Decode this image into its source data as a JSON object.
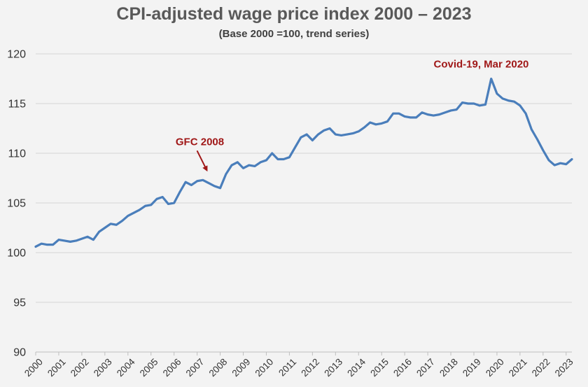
{
  "title": "CPI-adjusted wage price index 2000 – 2023",
  "subtitle": "(Base 2000 =100, trend series)",
  "chart_data": {
    "type": "line",
    "title": "CPI-adjusted wage price index 2000 – 2023",
    "subtitle": "(Base 2000 =100, trend series)",
    "xlabel": "",
    "ylabel": "",
    "xlim": [
      2000,
      2023.25
    ],
    "ylim": [
      90,
      120
    ],
    "yticks": [
      90,
      95,
      100,
      105,
      110,
      115,
      120
    ],
    "xticks": [
      "2000",
      "2001",
      "2002",
      "2003",
      "2004",
      "2005",
      "2006",
      "2007",
      "2008",
      "2009",
      "2010",
      "2011",
      "2012",
      "2013",
      "2014",
      "2015",
      "2016",
      "2017",
      "2018",
      "2019",
      "2020",
      "2021",
      "2022",
      "2023"
    ],
    "grid": "horizontal",
    "legend": "none",
    "line_color": "#4a7ebb",
    "annotation_color": "#a01818",
    "series": [
      {
        "x": [
          2000.0,
          2000.25,
          2000.5,
          2000.75,
          2001.0,
          2001.25,
          2001.5,
          2001.75,
          2002.0,
          2002.25,
          2002.5,
          2002.75,
          2003.0,
          2003.25,
          2003.5,
          2003.75,
          2004.0,
          2004.25,
          2004.5,
          2004.75,
          2005.0,
          2005.25,
          2005.5,
          2005.75,
          2006.0,
          2006.25,
          2006.5,
          2006.75,
          2007.0,
          2007.25,
          2007.5,
          2007.75,
          2008.0,
          2008.25,
          2008.5,
          2008.75,
          2009.0,
          2009.25,
          2009.5,
          2009.75,
          2010.0,
          2010.25,
          2010.5,
          2010.75,
          2011.0,
          2011.25,
          2011.5,
          2011.75,
          2012.0,
          2012.25,
          2012.5,
          2012.75,
          2013.0,
          2013.25,
          2013.5,
          2013.75,
          2014.0,
          2014.25,
          2014.5,
          2014.75,
          2015.0,
          2015.25,
          2015.5,
          2015.75,
          2016.0,
          2016.25,
          2016.5,
          2016.75,
          2017.0,
          2017.25,
          2017.5,
          2017.75,
          2018.0,
          2018.25,
          2018.5,
          2018.75,
          2019.0,
          2019.25,
          2019.5,
          2019.75,
          2020.0,
          2020.25,
          2020.5,
          2020.75,
          2021.0,
          2021.25,
          2021.5,
          2021.75,
          2022.0,
          2022.25,
          2022.5,
          2022.75,
          2023.0,
          2023.25
        ],
        "values": [
          100.6,
          100.9,
          100.8,
          100.8,
          101.3,
          101.2,
          101.1,
          101.2,
          101.4,
          101.6,
          101.3,
          102.1,
          102.5,
          102.9,
          102.8,
          103.2,
          103.7,
          104.0,
          104.3,
          104.7,
          104.8,
          105.4,
          105.6,
          104.9,
          105.0,
          106.1,
          107.1,
          106.8,
          107.2,
          107.3,
          107.0,
          106.7,
          106.5,
          107.9,
          108.8,
          109.1,
          108.5,
          108.8,
          108.7,
          109.1,
          109.3,
          110.0,
          109.4,
          109.4,
          109.6,
          110.6,
          111.6,
          111.9,
          111.3,
          111.9,
          112.3,
          112.5,
          111.9,
          111.8,
          111.9,
          112.0,
          112.2,
          112.6,
          113.1,
          112.9,
          113.0,
          113.2,
          114.0,
          114.0,
          113.7,
          113.6,
          113.6,
          114.1,
          113.9,
          113.8,
          113.9,
          114.1,
          114.3,
          114.4,
          115.1,
          115.0,
          115.0,
          114.8,
          114.9,
          117.5,
          116.0,
          115.5,
          115.3,
          115.2,
          114.8,
          114.0,
          112.4,
          111.4,
          110.3,
          109.3,
          108.8,
          109.0,
          108.9,
          109.4
        ]
      }
    ],
    "annotations": [
      {
        "text": "GFC 2008",
        "x": 2007.3,
        "y": 107.3
      },
      {
        "text": "Covid-19, Mar 2020",
        "x": 2019.5,
        "y": 117.5
      }
    ]
  }
}
